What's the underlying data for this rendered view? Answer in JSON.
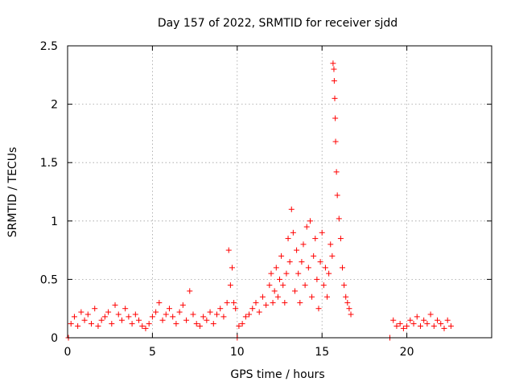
{
  "chart_data": {
    "type": "scatter",
    "title": "Day 157 of 2022, SRMTID for receiver sjdd",
    "xlabel": "GPS time / hours",
    "ylabel": "SRMTID / TECUs",
    "xlim": [
      0,
      25
    ],
    "ylim": [
      0,
      2.5
    ],
    "xticks": [
      0,
      5,
      10,
      15,
      20
    ],
    "xtick_labels": [
      "0",
      "5",
      "10",
      "15",
      "20"
    ],
    "yticks": [
      0,
      0.5,
      1,
      1.5,
      2,
      2.5
    ],
    "ytick_labels": [
      "0",
      "0.5",
      "1",
      "1.5",
      "2",
      "2.5"
    ],
    "grid": true,
    "marker": "+",
    "series": [
      {
        "name": "SRMTID",
        "color": "#ff0000",
        "x": [
          0.05,
          0.2,
          0.4,
          0.6,
          0.8,
          1.0,
          1.2,
          1.4,
          1.6,
          1.8,
          2.0,
          2.2,
          2.4,
          2.6,
          2.8,
          3.0,
          3.2,
          3.4,
          3.6,
          3.8,
          4.0,
          4.2,
          4.4,
          4.6,
          4.8,
          5.0,
          5.2,
          5.4,
          5.6,
          5.8,
          6.0,
          6.2,
          6.4,
          6.6,
          6.8,
          7.0,
          7.2,
          7.4,
          7.6,
          7.8,
          8.0,
          8.2,
          8.4,
          8.6,
          8.8,
          9.0,
          9.2,
          9.4,
          9.5,
          9.6,
          9.7,
          9.8,
          9.9,
          10.0,
          10.1,
          10.3,
          10.5,
          10.7,
          10.9,
          11.1,
          11.3,
          11.5,
          11.7,
          11.9,
          12.0,
          12.1,
          12.2,
          12.3,
          12.4,
          12.5,
          12.6,
          12.7,
          12.8,
          12.9,
          13.0,
          13.1,
          13.2,
          13.3,
          13.4,
          13.5,
          13.6,
          13.7,
          13.8,
          13.9,
          14.0,
          14.1,
          14.2,
          14.3,
          14.4,
          14.5,
          14.6,
          14.7,
          14.8,
          14.9,
          15.0,
          15.1,
          15.2,
          15.3,
          15.4,
          15.5,
          15.6,
          15.65,
          15.7,
          15.72,
          15.75,
          15.78,
          15.8,
          15.85,
          15.9,
          16.0,
          16.1,
          16.2,
          16.3,
          16.4,
          16.5,
          16.6,
          16.7,
          19.0,
          19.2,
          19.4,
          19.6,
          19.8,
          20.0,
          20.2,
          20.4,
          20.6,
          20.8,
          21.0,
          21.2,
          21.4,
          21.6,
          21.8,
          22.0,
          22.2,
          22.4,
          22.6
        ],
        "y": [
          0.0,
          0.12,
          0.18,
          0.1,
          0.22,
          0.15,
          0.2,
          0.12,
          0.25,
          0.1,
          0.15,
          0.18,
          0.22,
          0.12,
          0.28,
          0.2,
          0.15,
          0.25,
          0.18,
          0.12,
          0.2,
          0.15,
          0.1,
          0.08,
          0.12,
          0.18,
          0.22,
          0.3,
          0.15,
          0.2,
          0.25,
          0.18,
          0.12,
          0.22,
          0.28,
          0.15,
          0.4,
          0.2,
          0.12,
          0.1,
          0.18,
          0.15,
          0.22,
          0.12,
          0.2,
          0.25,
          0.18,
          0.3,
          0.75,
          0.45,
          0.6,
          0.3,
          0.25,
          0.0,
          0.1,
          0.12,
          0.18,
          0.2,
          0.25,
          0.3,
          0.22,
          0.35,
          0.28,
          0.45,
          0.55,
          0.3,
          0.4,
          0.6,
          0.35,
          0.5,
          0.7,
          0.45,
          0.3,
          0.55,
          0.85,
          0.65,
          1.1,
          0.9,
          0.4,
          0.75,
          0.55,
          0.3,
          0.65,
          0.8,
          0.45,
          0.95,
          0.6,
          1.0,
          0.35,
          0.7,
          0.85,
          0.5,
          0.25,
          0.65,
          0.9,
          0.45,
          0.6,
          0.35,
          0.55,
          0.8,
          0.7,
          2.35,
          2.3,
          2.2,
          2.05,
          1.88,
          1.68,
          1.42,
          1.22,
          1.02,
          0.85,
          0.6,
          0.45,
          0.35,
          0.3,
          0.25,
          0.2,
          0.0,
          0.15,
          0.1,
          0.12,
          0.08,
          0.1,
          0.15,
          0.12,
          0.18,
          0.1,
          0.15,
          0.12,
          0.2,
          0.1,
          0.15,
          0.12,
          0.08,
          0.15,
          0.1
        ]
      }
    ]
  }
}
